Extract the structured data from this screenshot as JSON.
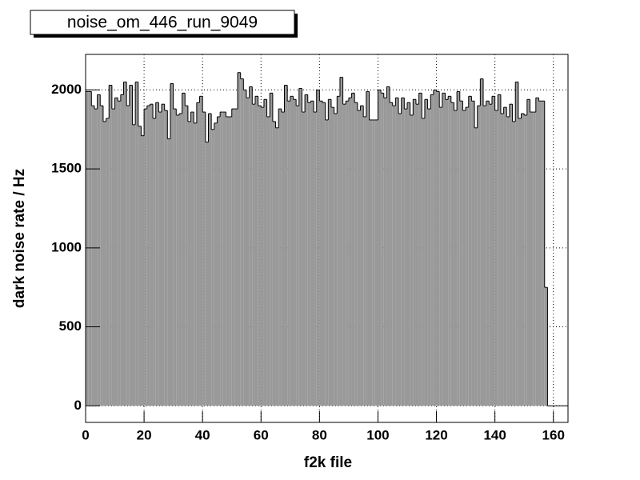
{
  "chart_data": {
    "type": "histogram",
    "title": "noise_om_446_run_9049",
    "x_label": "f2k file",
    "y_label": "dark noise rate / Hz",
    "color": "#999999",
    "grid": true,
    "xlim": [
      0,
      165
    ],
    "ylim": [
      -105,
      2225
    ],
    "xticks": [
      0,
      20,
      40,
      60,
      80,
      100,
      120,
      140,
      160
    ],
    "yticks": [
      0,
      500,
      1000,
      1500,
      2000
    ],
    "bins": [
      0,
      1,
      2,
      3,
      4,
      5,
      6,
      7,
      8,
      9,
      10,
      11,
      12,
      13,
      14,
      15,
      16,
      17,
      18,
      19,
      20,
      21,
      22,
      23,
      24,
      25,
      26,
      27,
      28,
      29,
      30,
      31,
      32,
      33,
      34,
      35,
      36,
      37,
      38,
      39,
      40,
      41,
      42,
      43,
      44,
      45,
      46,
      47,
      48,
      49,
      50,
      51,
      52,
      53,
      54,
      55,
      56,
      57,
      58,
      59,
      60,
      61,
      62,
      63,
      64,
      65,
      66,
      67,
      68,
      69,
      70,
      71,
      72,
      73,
      74,
      75,
      76,
      77,
      78,
      79,
      80,
      81,
      82,
      83,
      84,
      85,
      86,
      87,
      88,
      89,
      90,
      91,
      92,
      93,
      94,
      95,
      96,
      97,
      98,
      99,
      100,
      101,
      102,
      103,
      104,
      105,
      106,
      107,
      108,
      109,
      110,
      111,
      112,
      113,
      114,
      115,
      116,
      117,
      118,
      119,
      120,
      121,
      122,
      123,
      124,
      125,
      126,
      127,
      128,
      129,
      130,
      131,
      132,
      133,
      134,
      135,
      136,
      137,
      138,
      139,
      140,
      141,
      142,
      143,
      144,
      145,
      146,
      147,
      148,
      149,
      150,
      151,
      152,
      153,
      154,
      155,
      156,
      157,
      158,
      159,
      160,
      161,
      162,
      163,
      164,
      165
    ],
    "values": [
      1990,
      1990,
      1900,
      1880,
      1970,
      1900,
      1800,
      1820,
      2030,
      1880,
      1950,
      1930,
      1970,
      2050,
      1900,
      2030,
      1780,
      2050,
      1770,
      1710,
      1880,
      1900,
      1910,
      1820,
      1920,
      1860,
      1910,
      1870,
      1690,
      2040,
      1880,
      1840,
      1850,
      1980,
      1900,
      1800,
      1860,
      1790,
      1920,
      1960,
      1860,
      1670,
      1850,
      1750,
      1790,
      1830,
      1860,
      1860,
      1830,
      1830,
      1880,
      1880,
      2110,
      2070,
      2000,
      1950,
      2020,
      1910,
      1960,
      1900,
      1890,
      1940,
      1830,
      1980,
      1800,
      1760,
      1880,
      1860,
      2030,
      1930,
      1960,
      1940,
      1900,
      2010,
      1860,
      1970,
      1920,
      1930,
      1860,
      2000,
      1930,
      1920,
      1810,
      1940,
      1890,
      1850,
      1960,
      2080,
      1910,
      1930,
      1950,
      1980,
      1920,
      1870,
      1900,
      1830,
      1990,
      1810,
      1810,
      1810,
      2000,
      1980,
      1950,
      2020,
      1920,
      1900,
      1950,
      1850,
      1950,
      1880,
      1920,
      1840,
      1940,
      1910,
      1980,
      1820,
      1940,
      1880,
      1970,
      2000,
      1990,
      1890,
      1980,
      1940,
      1960,
      1920,
      1870,
      1990,
      1930,
      1870,
      1890,
      1960,
      1930,
      1760,
      1900,
      2070,
      1900,
      1930,
      1910,
      1960,
      1870,
      1970,
      1850,
      1890,
      1830,
      1910,
      1800,
      2050,
      1820,
      1850,
      1840,
      1940,
      1860,
      1860,
      1950,
      1930,
      1930,
      750,
      0,
      0,
      0,
      0,
      0,
      0,
      0
    ]
  }
}
